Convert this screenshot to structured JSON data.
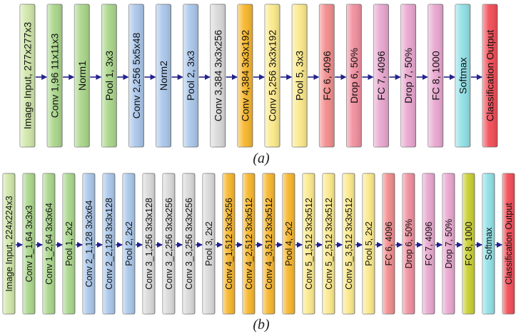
{
  "diagram_a": {
    "caption": "(a)",
    "blocks": [
      {
        "label": "Image Input, 277x277x3",
        "color": "#cfe6a8"
      },
      {
        "label": "Conv 1,96 11x11x3",
        "color": "#a9d68a"
      },
      {
        "label": "Norm1",
        "color": "#a9d68a"
      },
      {
        "label": "Pool 1, 3x3",
        "color": "#a9d68a"
      },
      {
        "label": "Conv 2,256 5x5x48",
        "color": "#a9c6ea"
      },
      {
        "label": "Norm2",
        "color": "#a9c6ea"
      },
      {
        "label": "Pool 2, 3x3",
        "color": "#a9c6ea"
      },
      {
        "label": "Conv 3,384 3x3x256",
        "color": "#d9d9d9"
      },
      {
        "label": "Conv 4,384 3x3x192",
        "color": "#f7b52a"
      },
      {
        "label": "Conv 5,256 3x3x192",
        "color": "#fbe98a"
      },
      {
        "label": "Pool 5, 3x3",
        "color": "#fbe98a"
      },
      {
        "label": "FC 6, 4096",
        "color": "#f28b8b"
      },
      {
        "label": "Drop 6, 50%",
        "color": "#f08e9e"
      },
      {
        "label": "FC 7, 4096",
        "color": "#e9a6cf"
      },
      {
        "label": "Drop 7, 50%",
        "color": "#e9a6cf"
      },
      {
        "label": "FC 8, 1000",
        "color": "#e9a6cf"
      },
      {
        "label": "Softmax",
        "color": "#8fe0e6"
      },
      {
        "label": "Classification Output",
        "color": "#f24b55"
      }
    ]
  },
  "diagram_b": {
    "caption": "(b)",
    "blocks": [
      {
        "label": "Image Input, 224x224x3",
        "color": "#cfe6a8"
      },
      {
        "label": "Conv 1_1,64 3x3x3",
        "color": "#a9d68a"
      },
      {
        "label": "Conv 1_2,64 3x3x64",
        "color": "#a9d68a"
      },
      {
        "label": "Pool 1, 2x2",
        "color": "#a9d68a"
      },
      {
        "label": "Conv 2_1,128 3x3x64",
        "color": "#a9c6ea"
      },
      {
        "label": "Conv 2_2,128 3x3x128",
        "color": "#a9c6ea"
      },
      {
        "label": "Pool 2, 2x2",
        "color": "#a9c6ea"
      },
      {
        "label": "Conv 3_1,256 3x3x128",
        "color": "#d9d9d9"
      },
      {
        "label": "Conv 3_2,256 3x3x256",
        "color": "#d9d9d9"
      },
      {
        "label": "Conv 3_3,256 3x3x256",
        "color": "#d9d9d9"
      },
      {
        "label": "Pool 3, 2x2",
        "color": "#d9d9d9"
      },
      {
        "label": "Conv 4_1,512 3x3x256",
        "color": "#f7b52a"
      },
      {
        "label": "Conv 4_2,512 3x3x512",
        "color": "#f7b52a"
      },
      {
        "label": "Conv 4_3,512 3x3x512",
        "color": "#f7b52a"
      },
      {
        "label": "Pool 4, 2x2",
        "color": "#f7b52a"
      },
      {
        "label": "Conv 5_1,512 3x3x512",
        "color": "#fbe98a"
      },
      {
        "label": "Conv 5_2,512 3x3x512",
        "color": "#fbe98a"
      },
      {
        "label": "Conv 5_3,512 3x3x512",
        "color": "#fbe98a"
      },
      {
        "label": "Pool 5, 2x2",
        "color": "#fbe98a"
      },
      {
        "label": "FC 6, 4096",
        "color": "#f28b8b"
      },
      {
        "label": "Drop 6, 50%",
        "color": "#f08e9e"
      },
      {
        "label": "FC 7, 4096",
        "color": "#e9a6cf"
      },
      {
        "label": "Drop 7, 50%",
        "color": "#e9a6cf"
      },
      {
        "label": "FC 8, 1000",
        "color": "#c8cf2e"
      },
      {
        "label": "Softmax",
        "color": "#8fe0e6"
      },
      {
        "label": "Classification Output",
        "color": "#f24b55"
      }
    ]
  },
  "arrow_color": "#23238e"
}
